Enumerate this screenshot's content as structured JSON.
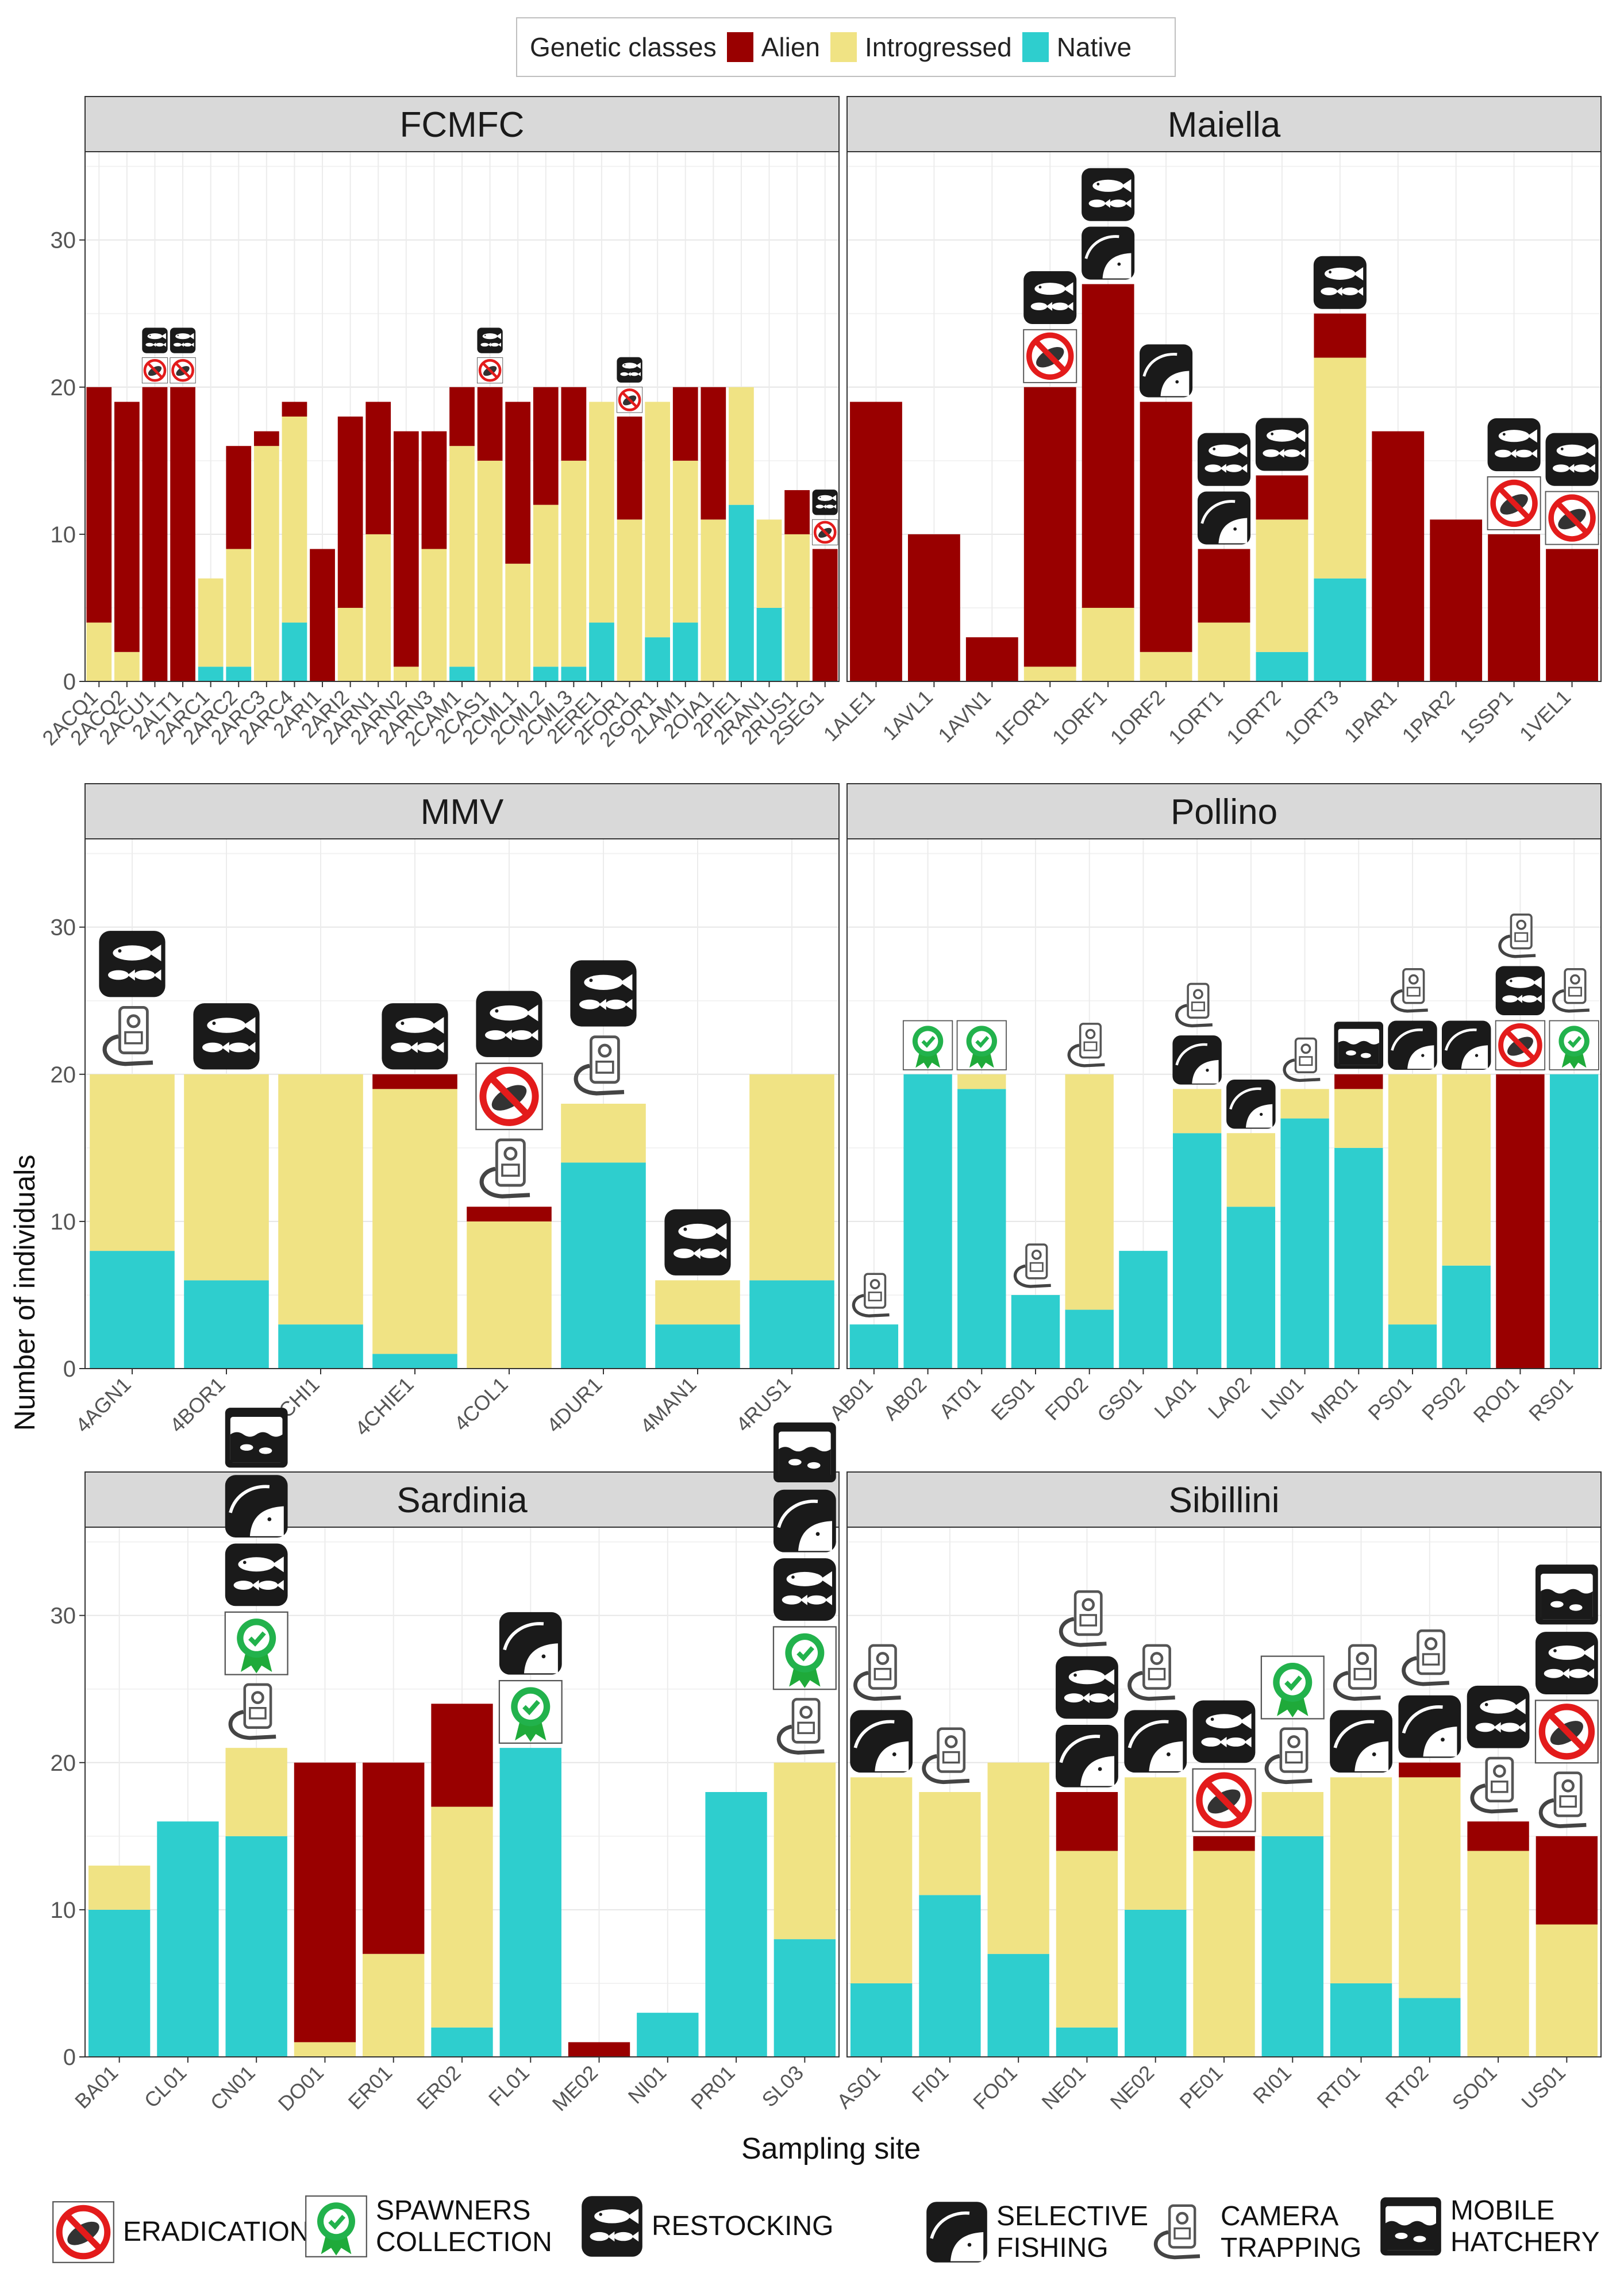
{
  "legend": {
    "title": "Genetic classes",
    "items": [
      {
        "label": "Alien",
        "color": "#990000"
      },
      {
        "label": "Introgressed",
        "color": "#f0e384"
      },
      {
        "label": "Native",
        "color": "#2ecece"
      }
    ]
  },
  "axes": {
    "ylabel": "Number of individuals",
    "xlabel": "Sampling site",
    "yticks": [
      "0",
      "10",
      "20",
      "30"
    ]
  },
  "action_legend": [
    {
      "key": "eradication",
      "label_lines": [
        "ERADICATION"
      ]
    },
    {
      "key": "spawners",
      "label_lines": [
        "SPAWNERS",
        "COLLECTION"
      ]
    },
    {
      "key": "restocking",
      "label_lines": [
        "RESTOCKING"
      ]
    },
    {
      "key": "selective",
      "label_lines": [
        "SELECTIVE",
        "FISHING"
      ]
    },
    {
      "key": "camera",
      "label_lines": [
        "CAMERA",
        "TRAPPING"
      ]
    },
    {
      "key": "hatchery",
      "label_lines": [
        "MOBILE",
        "HATCHERY"
      ]
    }
  ],
  "chart_data": [
    {
      "type": "bar",
      "stacked": true,
      "title": "FCMFC",
      "ylim": [
        0,
        36
      ],
      "categories": [
        "2ACQ1",
        "2ACQ2",
        "2ACU1",
        "2ALT1",
        "2ARC1",
        "2ARC2",
        "2ARC3",
        "2ARC4",
        "2ARI1",
        "2ARI2",
        "2ARN1",
        "2ARN2",
        "2ARN3",
        "2CAM1",
        "2CAS1",
        "2CML1",
        "2CML2",
        "2CML3",
        "2ERE1",
        "2FOR1",
        "2GOR1",
        "2LAM1",
        "2OIA1",
        "2PIE1",
        "2RAN1",
        "2RUS1",
        "2SEG1"
      ],
      "series": [
        {
          "name": "Native",
          "values": [
            0,
            0,
            0,
            0,
            1,
            1,
            0,
            4,
            0,
            0,
            0,
            0,
            0,
            1,
            0,
            0,
            1,
            1,
            4,
            0,
            3,
            4,
            0,
            12,
            5,
            0,
            0
          ]
        },
        {
          "name": "Introgressed",
          "values": [
            4,
            2,
            0,
            0,
            6,
            8,
            16,
            14,
            0,
            5,
            10,
            1,
            9,
            15,
            15,
            8,
            11,
            14,
            15,
            11,
            16,
            11,
            11,
            8,
            6,
            10,
            0
          ]
        },
        {
          "name": "Alien",
          "values": [
            16,
            17,
            20,
            20,
            0,
            7,
            1,
            1,
            9,
            13,
            9,
            16,
            8,
            4,
            5,
            11,
            8,
            5,
            0,
            7,
            0,
            5,
            9,
            0,
            0,
            3,
            9
          ]
        }
      ],
      "actions": [
        {
          "category": "2ACU1",
          "icons": [
            "restocking",
            "eradication"
          ]
        },
        {
          "category": "2ALT1",
          "icons": [
            "restocking",
            "eradication"
          ]
        },
        {
          "category": "2CAS1",
          "icons": [
            "restocking",
            "eradication"
          ]
        },
        {
          "category": "2FOR1",
          "icons": [
            "restocking",
            "eradication"
          ]
        },
        {
          "category": "2SEG1",
          "icons": [
            "restocking",
            "eradication"
          ]
        }
      ]
    },
    {
      "type": "bar",
      "stacked": true,
      "title": "Maiella",
      "ylim": [
        0,
        36
      ],
      "categories": [
        "1ALE1",
        "1AVL1",
        "1AVN1",
        "1FOR1",
        "1ORF1",
        "1ORF2",
        "1ORT1",
        "1ORT2",
        "1ORT3",
        "1PAR1",
        "1PAR2",
        "1SSP1",
        "1VEL1"
      ],
      "series": [
        {
          "name": "Native",
          "values": [
            0,
            0,
            0,
            0,
            0,
            0,
            0,
            2,
            7,
            0,
            0,
            0,
            0
          ]
        },
        {
          "name": "Introgressed",
          "values": [
            0,
            0,
            0,
            1,
            5,
            2,
            4,
            9,
            15,
            0,
            0,
            0,
            0
          ]
        },
        {
          "name": "Alien",
          "values": [
            19,
            10,
            3,
            19,
            22,
            17,
            5,
            3,
            3,
            17,
            11,
            10,
            9
          ]
        }
      ],
      "actions": [
        {
          "category": "1FOR1",
          "icons": [
            "restocking",
            "eradication"
          ]
        },
        {
          "category": "1ORF1",
          "icons": [
            "restocking",
            "selective"
          ]
        },
        {
          "category": "1ORF2",
          "icons": [
            "selective"
          ]
        },
        {
          "category": "1ORT1",
          "icons": [
            "restocking",
            "selective"
          ]
        },
        {
          "category": "1ORT2",
          "icons": [
            "restocking"
          ]
        },
        {
          "category": "1ORT3",
          "icons": [
            "restocking"
          ]
        },
        {
          "category": "1SSP1",
          "icons": [
            "restocking",
            "eradication"
          ]
        },
        {
          "category": "1VEL1",
          "icons": [
            "restocking",
            "eradication"
          ]
        }
      ]
    },
    {
      "type": "bar",
      "stacked": true,
      "title": "MMV",
      "ylim": [
        0,
        36
      ],
      "categories": [
        "4AGN1",
        "4BOR1",
        "4CHI1",
        "4CHIE1",
        "4COL1",
        "4DUR1",
        "4MAN1",
        "4RUS1"
      ],
      "series": [
        {
          "name": "Native",
          "values": [
            8,
            6,
            3,
            1,
            0,
            14,
            3,
            6
          ]
        },
        {
          "name": "Introgressed",
          "values": [
            12,
            14,
            17,
            18,
            10,
            4,
            3,
            14
          ]
        },
        {
          "name": "Alien",
          "values": [
            0,
            0,
            0,
            1,
            1,
            0,
            0,
            0
          ]
        }
      ],
      "actions": [
        {
          "category": "4AGN1",
          "icons": [
            "restocking",
            "camera"
          ]
        },
        {
          "category": "4BOR1",
          "icons": [
            "restocking"
          ]
        },
        {
          "category": "4CHIE1",
          "icons": [
            "restocking"
          ]
        },
        {
          "category": "4COL1",
          "icons": [
            "restocking",
            "eradication",
            "camera"
          ]
        },
        {
          "category": "4DUR1",
          "icons": [
            "restocking",
            "camera"
          ]
        },
        {
          "category": "4MAN1",
          "icons": [
            "restocking"
          ]
        }
      ]
    },
    {
      "type": "bar",
      "stacked": true,
      "title": "Pollino",
      "ylim": [
        0,
        36
      ],
      "categories": [
        "AB01",
        "AB02",
        "AT01",
        "ES01",
        "FD02",
        "GS01",
        "LA01",
        "LA02",
        "LN01",
        "MR01",
        "PS01",
        "PS02",
        "RO01",
        "RS01"
      ],
      "series": [
        {
          "name": "Native",
          "values": [
            3,
            20,
            19,
            5,
            4,
            8,
            16,
            11,
            17,
            15,
            3,
            7,
            0,
            20
          ]
        },
        {
          "name": "Introgressed",
          "values": [
            0,
            0,
            1,
            0,
            16,
            0,
            3,
            5,
            2,
            4,
            17,
            13,
            0,
            0
          ]
        },
        {
          "name": "Alien",
          "values": [
            0,
            0,
            0,
            0,
            0,
            0,
            0,
            0,
            0,
            1,
            0,
            0,
            20,
            0
          ]
        }
      ],
      "actions": [
        {
          "category": "AB01",
          "icons": [
            "camera"
          ]
        },
        {
          "category": "AB02",
          "icons": [
            "spawners"
          ]
        },
        {
          "category": "AT01",
          "icons": [
            "spawners"
          ]
        },
        {
          "category": "ES01",
          "icons": [
            "camera"
          ]
        },
        {
          "category": "FD02",
          "icons": [
            "camera"
          ]
        },
        {
          "category": "LA01",
          "icons": [
            "camera",
            "selective"
          ]
        },
        {
          "category": "LA02",
          "icons": [
            "selective"
          ]
        },
        {
          "category": "LN01",
          "icons": [
            "camera"
          ]
        },
        {
          "category": "MR01",
          "icons": [
            "hatchery"
          ]
        },
        {
          "category": "PS01",
          "icons": [
            "camera",
            "selective"
          ]
        },
        {
          "category": "PS02",
          "icons": [
            "selective"
          ]
        },
        {
          "category": "RO01",
          "icons": [
            "camera",
            "restocking",
            "eradication"
          ]
        },
        {
          "category": "RS01",
          "icons": [
            "camera",
            "spawners"
          ]
        }
      ]
    },
    {
      "type": "bar",
      "stacked": true,
      "title": "Sardinia",
      "ylim": [
        0,
        36
      ],
      "categories": [
        "BA01",
        "CL01",
        "CN01",
        "DO01",
        "ER01",
        "ER02",
        "FL01",
        "ME02",
        "NI01",
        "PR01",
        "SL03"
      ],
      "series": [
        {
          "name": "Native",
          "values": [
            10,
            16,
            15,
            0,
            0,
            2,
            21,
            0,
            3,
            18,
            8
          ]
        },
        {
          "name": "Introgressed",
          "values": [
            3,
            0,
            6,
            1,
            7,
            15,
            0,
            0,
            0,
            0,
            12
          ]
        },
        {
          "name": "Alien",
          "values": [
            0,
            0,
            0,
            19,
            13,
            7,
            0,
            1,
            0,
            0,
            0
          ]
        }
      ],
      "actions": [
        {
          "category": "CN01",
          "icons": [
            "hatchery",
            "selective",
            "restocking",
            "spawners",
            "camera"
          ]
        },
        {
          "category": "FL01",
          "icons": [
            "selective",
            "spawners"
          ]
        },
        {
          "category": "SL03",
          "icons": [
            "hatchery",
            "selective",
            "restocking",
            "spawners",
            "camera"
          ]
        }
      ]
    },
    {
      "type": "bar",
      "stacked": true,
      "title": "Sibillini",
      "ylim": [
        0,
        36
      ],
      "categories": [
        "AS01",
        "FI01",
        "FO01",
        "NE01",
        "NE02",
        "PE01",
        "RI01",
        "RT01",
        "RT02",
        "SO01",
        "US01"
      ],
      "series": [
        {
          "name": "Native",
          "values": [
            5,
            11,
            7,
            2,
            10,
            0,
            15,
            5,
            4,
            0,
            0
          ]
        },
        {
          "name": "Introgressed",
          "values": [
            14,
            7,
            13,
            12,
            9,
            14,
            3,
            14,
            15,
            14,
            9
          ]
        },
        {
          "name": "Alien",
          "values": [
            0,
            0,
            0,
            4,
            0,
            1,
            0,
            0,
            1,
            2,
            6
          ]
        }
      ],
      "actions": [
        {
          "category": "AS01",
          "icons": [
            "camera",
            "selective"
          ]
        },
        {
          "category": "FI01",
          "icons": [
            "camera"
          ]
        },
        {
          "category": "NE01",
          "icons": [
            "camera",
            "restocking",
            "selective"
          ]
        },
        {
          "category": "NE02",
          "icons": [
            "camera",
            "selective"
          ]
        },
        {
          "category": "PE01",
          "icons": [
            "restocking",
            "eradication"
          ]
        },
        {
          "category": "RI01",
          "icons": [
            "spawners",
            "camera"
          ]
        },
        {
          "category": "RT01",
          "icons": [
            "camera",
            "selective"
          ]
        },
        {
          "category": "RT02",
          "icons": [
            "camera",
            "selective"
          ]
        },
        {
          "category": "SO01",
          "icons": [
            "restocking",
            "camera"
          ]
        },
        {
          "category": "US01",
          "icons": [
            "hatchery",
            "restocking",
            "eradication",
            "camera"
          ]
        }
      ]
    }
  ]
}
